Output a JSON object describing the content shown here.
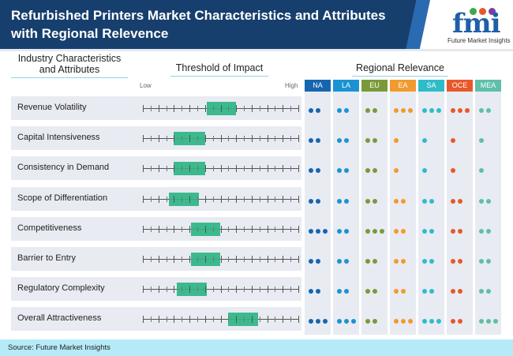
{
  "header": {
    "title": "Refurbished Printers Market Characteristics and Attributes with Regional Relevence",
    "logo_text": "fmi",
    "logo_tagline": "Future Market Insights"
  },
  "columns": {
    "attributes": "Industry Characteristics and Attributes",
    "threshold": "Threshold of Impact",
    "regional": "Regional Relevance",
    "low": "Low",
    "high": "High"
  },
  "regions": [
    {
      "code": "NA",
      "color": "#1565b0"
    },
    {
      "code": "LA",
      "color": "#1a93d3"
    },
    {
      "code": "EU",
      "color": "#7a9a3a"
    },
    {
      "code": "EA",
      "color": "#f29a2e"
    },
    {
      "code": "SA",
      "color": "#2fbcc8"
    },
    {
      "code": "OCE",
      "color": "#e8582a"
    },
    {
      "code": "MEA",
      "color": "#5fbfa8"
    }
  ],
  "rows": [
    {
      "label": "Revenue Volatility",
      "impact_start": 0.41,
      "impact_end": 0.6,
      "relevance": [
        2,
        2,
        2,
        3,
        3,
        3,
        2
      ]
    },
    {
      "label": "Capital Intensiveness",
      "impact_start": 0.2,
      "impact_end": 0.4,
      "relevance": [
        2,
        2,
        2,
        1,
        1,
        1,
        1
      ]
    },
    {
      "label": "Consistency in Demand",
      "impact_start": 0.2,
      "impact_end": 0.4,
      "relevance": [
        2,
        2,
        2,
        1,
        1,
        1,
        1
      ]
    },
    {
      "label": "Scope of Differentiation",
      "impact_start": 0.17,
      "impact_end": 0.36,
      "relevance": [
        2,
        2,
        2,
        2,
        2,
        2,
        2
      ]
    },
    {
      "label": "Competitiveness",
      "impact_start": 0.31,
      "impact_end": 0.5,
      "relevance": [
        3,
        2,
        3,
        2,
        2,
        2,
        2
      ]
    },
    {
      "label": "Barrier to Entry",
      "impact_start": 0.31,
      "impact_end": 0.5,
      "relevance": [
        2,
        2,
        2,
        2,
        2,
        2,
        2
      ]
    },
    {
      "label": "Regulatory Complexity",
      "impact_start": 0.22,
      "impact_end": 0.41,
      "relevance": [
        2,
        2,
        2,
        2,
        2,
        2,
        2
      ]
    },
    {
      "label": "Overall Attractiveness",
      "impact_start": 0.55,
      "impact_end": 0.74,
      "relevance": [
        3,
        3,
        2,
        3,
        3,
        2,
        3
      ]
    }
  ],
  "footer": {
    "source": "Source: Future Market Insights"
  },
  "colors": {
    "header_bg": "#173f6e",
    "bar": "#2eb486",
    "row_bg": "#e8ebf2",
    "footer_bg": "#b6eaf7"
  }
}
